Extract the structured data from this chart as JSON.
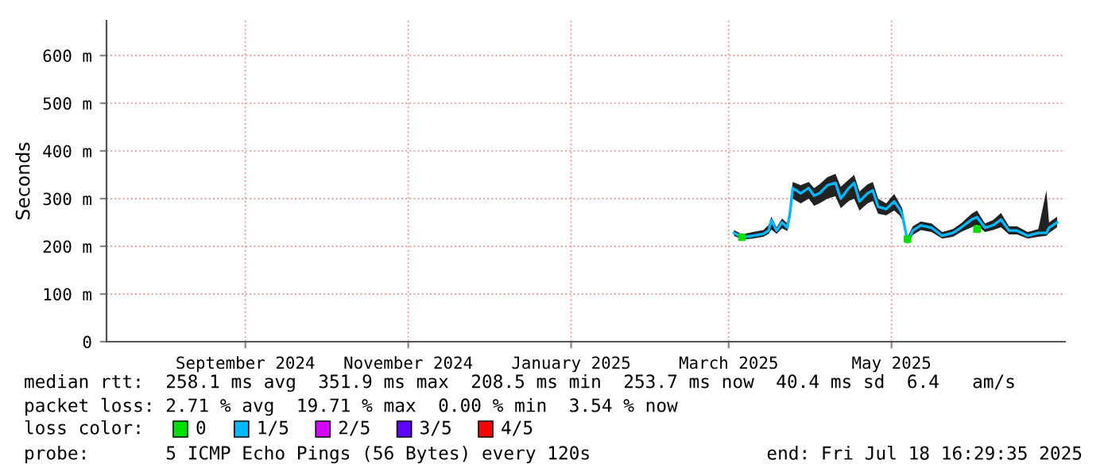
{
  "chart_data": {
    "type": "line",
    "ylabel": "Seconds",
    "x": [
      "2025-03-17",
      "2025-03-20",
      "2025-03-24",
      "2025-03-28",
      "2025-03-30",
      "2025-03-31",
      "2025-04-02",
      "2025-04-04",
      "2025-04-06",
      "2025-04-07",
      "2025-04-08",
      "2025-04-11",
      "2025-04-14",
      "2025-04-16",
      "2025-04-18",
      "2025-04-21",
      "2025-04-24",
      "2025-04-26",
      "2025-04-29",
      "2025-05-01",
      "2025-05-03",
      "2025-05-06",
      "2025-05-08",
      "2025-05-10",
      "2025-05-13",
      "2025-05-16",
      "2025-05-18",
      "2025-05-19",
      "2025-05-21",
      "2025-05-23",
      "2025-05-26",
      "2025-05-30",
      "2025-06-03",
      "2025-06-07",
      "2025-06-10",
      "2025-06-14",
      "2025-06-16",
      "2025-06-19",
      "2025-06-22",
      "2025-06-25",
      "2025-06-28",
      "2025-07-01",
      "2025-07-05",
      "2025-07-09",
      "2025-07-12",
      "2025-07-13",
      "2025-07-16"
    ],
    "series": [
      {
        "color": "#222222",
        "values": [
          null,
          null,
          null,
          null,
          null,
          null,
          null,
          null,
          null,
          null,
          null,
          null,
          null,
          null,
          null,
          null,
          null,
          null,
          null,
          null,
          null,
          null,
          null,
          null,
          null,
          null,
          null,
          null,
          null,
          null,
          null,
          null,
          null,
          null,
          null,
          null,
          null,
          null,
          null,
          null,
          null,
          null,
          null,
          null,
          null,
          null,
          null
        ],
        "lower": [
          222,
          214,
          216,
          220,
          226,
          235,
          226,
          238,
          232,
          255,
          300,
          290,
          300,
          285,
          290,
          300,
          305,
          280,
          295,
          300,
          275,
          290,
          295,
          268,
          265,
          275,
          265,
          255,
          205,
          224,
          234,
          230,
          216,
          220,
          230,
          240,
          245,
          230,
          234,
          240,
          225,
          225,
          216,
          220,
          222,
          228,
          240
        ],
        "upper": [
          234,
          225,
          230,
          234,
          245,
          262,
          240,
          258,
          248,
          285,
          335,
          328,
          335,
          322,
          330,
          345,
          352,
          325,
          340,
          350,
          315,
          330,
          335,
          300,
          290,
          310,
          290,
          280,
          220,
          242,
          252,
          248,
          230,
          236,
          248,
          268,
          275,
          248,
          255,
          270,
          242,
          242,
          230,
          236,
          317,
          250,
          262
        ]
      },
      {
        "name": "0",
        "color": "#00e000",
        "type": "scatter",
        "marker": "square",
        "x": [
          "2025-03-20",
          "2025-05-21",
          "2025-06-16"
        ],
        "values": [
          219,
          215,
          236
        ]
      },
      {
        "name": "1/5",
        "color": "#00b8ff",
        "values": [
          228,
          219,
          222,
          226,
          233,
          255,
          233,
          250,
          239,
          272,
          322,
          311,
          322,
          306,
          311,
          328,
          333,
          300,
          322,
          333,
          294,
          311,
          317,
          283,
          278,
          294,
          278,
          267,
          211,
          233,
          244,
          239,
          222,
          228,
          239,
          256,
          261,
          239,
          244,
          256,
          233,
          233,
          222,
          228,
          228,
          239,
          250
        ]
      },
      {
        "name": "2/5",
        "color": "#d800ff",
        "values": [
          null,
          null,
          null,
          null,
          null,
          null,
          null,
          null,
          null,
          null,
          null,
          null,
          null,
          null,
          null,
          null,
          null,
          null,
          null,
          null,
          null,
          null,
          null,
          null,
          null,
          null,
          null,
          null,
          null,
          null,
          null,
          null,
          null,
          null,
          null,
          null,
          null,
          null,
          null,
          null,
          null,
          null,
          null,
          null,
          null,
          null,
          null
        ]
      },
      {
        "name": "3/5",
        "color": "#6000ff",
        "values": [
          null,
          null,
          null,
          null,
          null,
          null,
          null,
          null,
          null,
          null,
          null,
          null,
          null,
          null,
          null,
          null,
          null,
          null,
          null,
          null,
          null,
          null,
          null,
          null,
          null,
          null,
          null,
          null,
          null,
          null,
          null,
          null,
          null,
          null,
          null,
          null,
          null,
          null,
          null,
          null,
          null,
          null,
          null,
          null,
          null,
          null,
          null
        ]
      },
      {
        "name": "4/5",
        "color": "#ff0000",
        "values": [
          null,
          null,
          null,
          null,
          null,
          null,
          null,
          null,
          null,
          null,
          null,
          null,
          null,
          null,
          null,
          null,
          null,
          null,
          null,
          null,
          null,
          null,
          null,
          null,
          null,
          null,
          null,
          null,
          null,
          null,
          null,
          null,
          null,
          null,
          null,
          null,
          null,
          null,
          null,
          null,
          null,
          null,
          null,
          null,
          null,
          null,
          null
        ]
      }
    ],
    "xlim": [
      "2024-07-25",
      "2025-07-19"
    ],
    "xticks": [
      {
        "value": "2024-09-15",
        "label": "September 2024"
      },
      {
        "value": "2024-11-15",
        "label": "November 2024"
      },
      {
        "value": "2025-01-15",
        "label": "January 2025"
      },
      {
        "value": "2025-03-15",
        "label": "March 2025"
      },
      {
        "value": "2025-05-15",
        "label": "May 2025"
      }
    ],
    "ylim": [
      0,
      673
    ],
    "yticks": [
      0,
      {
        "value": 100,
        "label": "100 m"
      },
      {
        "value": 200,
        "label": "200 m"
      },
      {
        "value": 300,
        "label": "300 m"
      },
      {
        "value": 400,
        "label": "400 m"
      },
      {
        "value": 500,
        "label": "500 m"
      },
      {
        "value": 600,
        "label": "600 m"
      }
    ],
    "grid": true,
    "legend": "bottom",
    "legend_title": "loss color:",
    "line_style": "solid",
    "annotations": [
      "median rtt:  258.1 ms avg  351.9 ms max  208.5 ms min  253.7 ms now  40.4 ms sd  6.4   am/s",
      "packet loss: 2.71 % avg  19.71 % max  0.00 % min  3.54 % now",
      "probe:       5 ICMP Echo Pings (56 Bytes) every 120s",
      "end: Fri Jul 18 16:29:35 2025"
    ]
  }
}
